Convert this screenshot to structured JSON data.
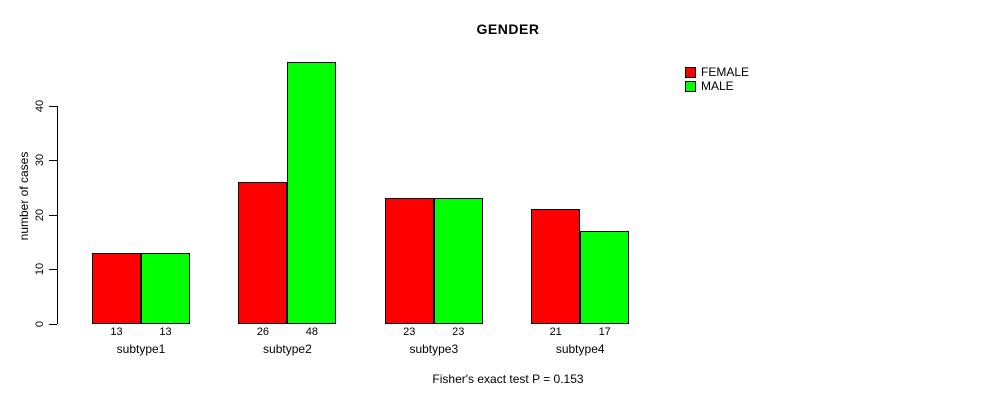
{
  "chart_data": {
    "type": "bar",
    "title": "GENDER",
    "ylabel": "number of cases",
    "xlabel": "",
    "caption": "Fisher's exact test P = 0.153",
    "categories": [
      "subtype1",
      "subtype2",
      "subtype3",
      "subtype4"
    ],
    "series": [
      {
        "name": "FEMALE",
        "color": "#FF0000",
        "values": [
          13,
          26,
          23,
          21
        ]
      },
      {
        "name": "MALE",
        "color": "#00FF00",
        "values": [
          13,
          48,
          23,
          17
        ]
      }
    ],
    "bar_value_labels": [
      [
        "13",
        "13"
      ],
      [
        "26",
        "48"
      ],
      [
        "23",
        "23"
      ],
      [
        "21",
        "17"
      ]
    ],
    "yticks": [
      0,
      10,
      20,
      30,
      40
    ],
    "ylim": [
      0,
      48
    ],
    "grid": false,
    "legend_position": "top-right",
    "colors": {
      "female": "#FF0000",
      "male": "#00FF00",
      "axis": "#000000",
      "background": "#FFFFFF"
    }
  }
}
